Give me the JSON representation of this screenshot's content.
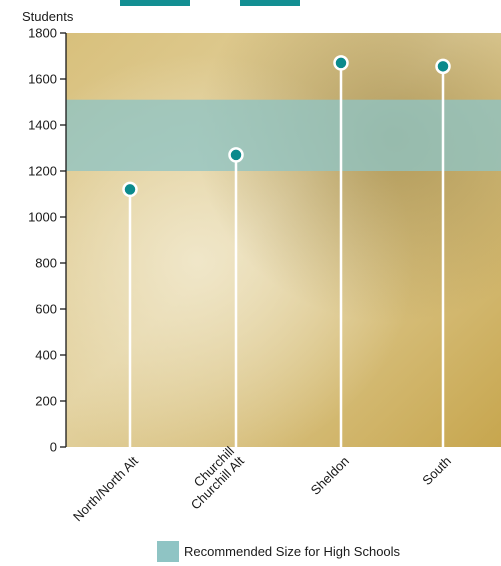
{
  "chart_data": {
    "type": "lollipop",
    "title": "",
    "xlabel": "",
    "ylabel": "Students",
    "ylim": [
      0,
      1800
    ],
    "yticks": [
      0,
      200,
      400,
      600,
      800,
      1000,
      1200,
      1400,
      1600,
      1800
    ],
    "categories": [
      {
        "lines": [
          "North/North Alt"
        ]
      },
      {
        "lines": [
          "Churchill",
          "Churchill Alt"
        ]
      },
      {
        "lines": [
          "Sheldon"
        ]
      },
      {
        "lines": [
          "South"
        ]
      }
    ],
    "values": [
      1120,
      1270,
      1670,
      1655
    ],
    "band": {
      "from": 1200,
      "to": 1510,
      "label": "Recommended Size for High Schools",
      "color": "#8fc4c4"
    },
    "colors": {
      "marker": "#0b8a8c",
      "stem": "#ffffff",
      "axis": "#1a1a1a"
    },
    "grid": false,
    "legend_position": "bottom"
  }
}
